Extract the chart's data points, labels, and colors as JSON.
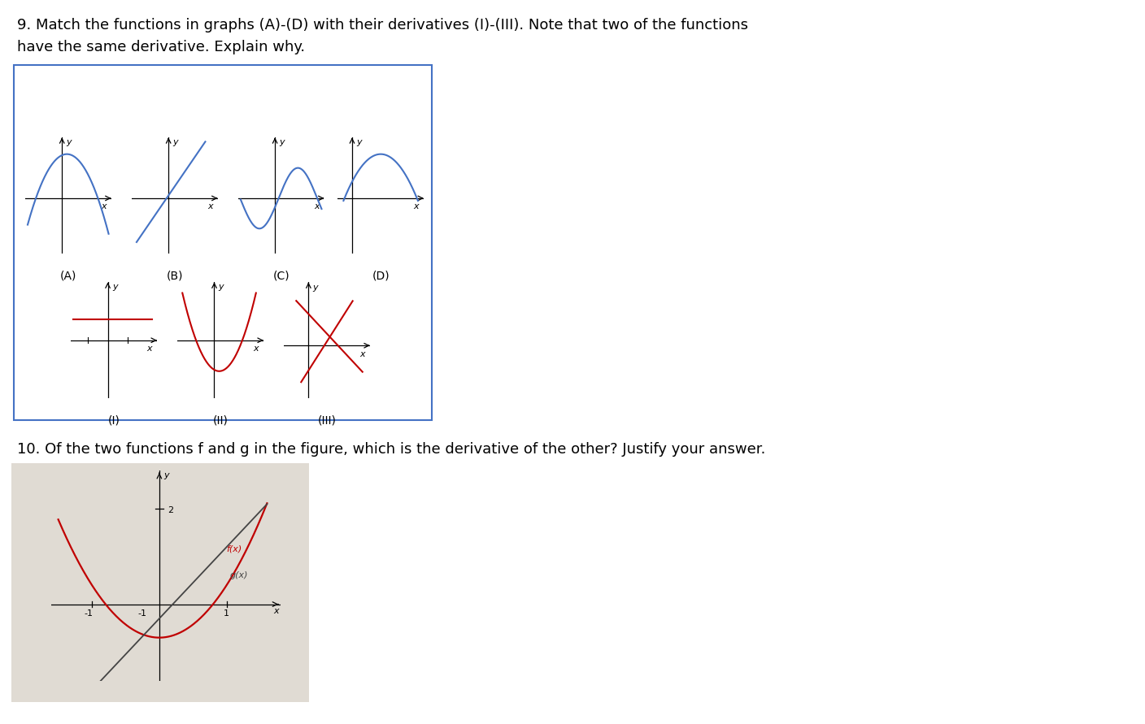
{
  "title9_line1": "9. Match the functions in graphs (A)-(D) with their derivatives (I)-(III). Note that two of the functions",
  "title9_line2": "have the same derivative. Explain why.",
  "title10": "10. Of the two functions f and g in the figure, which is the derivative of the other? Justify your answer.",
  "blue_color": "#4472C4",
  "red_color": "#C00000",
  "dark_gray": "#555555",
  "bg_color": "#ffffff",
  "text_color": "#000000",
  "border_color": "#4472C4",
  "text_fontsize": 13,
  "axis_label_fontsize": 8,
  "sub_label_fontsize": 10,
  "curve_lw": 1.5
}
